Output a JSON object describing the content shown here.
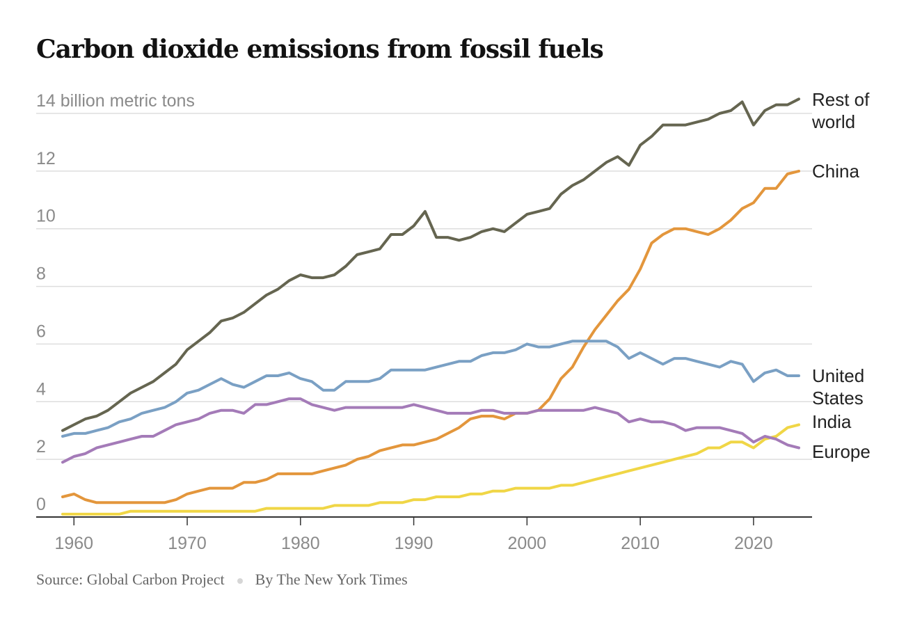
{
  "footer": {
    "source": "Source: Global Carbon Project",
    "byline": "By The New York Times"
  },
  "chart_data": {
    "type": "line",
    "title": "Carbon dioxide emissions from fossil fuels",
    "ylabel": "14 billion metric tons",
    "ylim": [
      0,
      14
    ],
    "y_ticks": [
      0,
      2,
      4,
      6,
      8,
      10,
      12,
      14
    ],
    "y_tick_labels": [
      "0",
      "2",
      "4",
      "6",
      "8",
      "10",
      "12",
      ""
    ],
    "xlim": [
      1959,
      2024
    ],
    "x_ticks": [
      1960,
      1970,
      1980,
      1990,
      2000,
      2010,
      2020
    ],
    "grid": true,
    "legend": "direct labels at right end",
    "x": [
      1959,
      1960,
      1961,
      1962,
      1963,
      1964,
      1965,
      1966,
      1967,
      1968,
      1969,
      1970,
      1971,
      1972,
      1973,
      1974,
      1975,
      1976,
      1977,
      1978,
      1979,
      1980,
      1981,
      1982,
      1983,
      1984,
      1985,
      1986,
      1987,
      1988,
      1989,
      1990,
      1991,
      1992,
      1993,
      1994,
      1995,
      1996,
      1997,
      1998,
      1999,
      2000,
      2001,
      2002,
      2003,
      2004,
      2005,
      2006,
      2007,
      2008,
      2009,
      2010,
      2011,
      2012,
      2013,
      2014,
      2015,
      2016,
      2017,
      2018,
      2019,
      2020,
      2021,
      2022,
      2023,
      2024
    ],
    "series": [
      {
        "name": "Rest of world",
        "label_lines": [
          "Rest of",
          "world"
        ],
        "color": "#656550",
        "values": [
          3.0,
          3.2,
          3.4,
          3.5,
          3.7,
          4.0,
          4.3,
          4.5,
          4.7,
          5.0,
          5.3,
          5.8,
          6.1,
          6.4,
          6.8,
          6.9,
          7.1,
          7.4,
          7.7,
          7.9,
          8.2,
          8.4,
          8.3,
          8.3,
          8.4,
          8.7,
          9.1,
          9.2,
          9.3,
          9.8,
          9.8,
          10.1,
          10.6,
          9.7,
          9.7,
          9.6,
          9.7,
          9.9,
          10.0,
          9.9,
          10.2,
          10.5,
          10.6,
          10.7,
          11.2,
          11.5,
          11.7,
          12.0,
          12.3,
          12.5,
          12.2,
          12.9,
          13.2,
          13.6,
          13.6,
          13.6,
          13.7,
          13.8,
          14.0,
          14.1,
          14.4,
          13.6,
          14.1,
          14.3,
          14.3,
          14.5
        ]
      },
      {
        "name": "China",
        "label_lines": [
          "China"
        ],
        "color": "#e3963c",
        "values": [
          0.7,
          0.8,
          0.6,
          0.5,
          0.5,
          0.5,
          0.5,
          0.5,
          0.5,
          0.5,
          0.6,
          0.8,
          0.9,
          1.0,
          1.0,
          1.0,
          1.2,
          1.2,
          1.3,
          1.5,
          1.5,
          1.5,
          1.5,
          1.6,
          1.7,
          1.8,
          2.0,
          2.1,
          2.3,
          2.4,
          2.5,
          2.5,
          2.6,
          2.7,
          2.9,
          3.1,
          3.4,
          3.5,
          3.5,
          3.4,
          3.6,
          3.6,
          3.7,
          4.1,
          4.8,
          5.2,
          5.9,
          6.5,
          7.0,
          7.5,
          7.9,
          8.6,
          9.5,
          9.8,
          10.0,
          10.0,
          9.9,
          9.8,
          10.0,
          10.3,
          10.7,
          10.9,
          11.4,
          11.4,
          11.9,
          12.0
        ]
      },
      {
        "name": "United States",
        "label_lines": [
          "United",
          "States"
        ],
        "color": "#7aa0c4",
        "values": [
          2.8,
          2.9,
          2.9,
          3.0,
          3.1,
          3.3,
          3.4,
          3.6,
          3.7,
          3.8,
          4.0,
          4.3,
          4.4,
          4.6,
          4.8,
          4.6,
          4.5,
          4.7,
          4.9,
          4.9,
          5.0,
          4.8,
          4.7,
          4.4,
          4.4,
          4.7,
          4.7,
          4.7,
          4.8,
          5.1,
          5.1,
          5.1,
          5.1,
          5.2,
          5.3,
          5.4,
          5.4,
          5.6,
          5.7,
          5.7,
          5.8,
          6.0,
          5.9,
          5.9,
          6.0,
          6.1,
          6.1,
          6.1,
          6.1,
          5.9,
          5.5,
          5.7,
          5.5,
          5.3,
          5.5,
          5.5,
          5.4,
          5.3,
          5.2,
          5.4,
          5.3,
          4.7,
          5.0,
          5.1,
          4.9,
          4.9
        ]
      },
      {
        "name": "India",
        "label_lines": [
          "India"
        ],
        "color": "#f0d646",
        "values": [
          0.1,
          0.1,
          0.1,
          0.1,
          0.1,
          0.1,
          0.2,
          0.2,
          0.2,
          0.2,
          0.2,
          0.2,
          0.2,
          0.2,
          0.2,
          0.2,
          0.2,
          0.2,
          0.3,
          0.3,
          0.3,
          0.3,
          0.3,
          0.3,
          0.4,
          0.4,
          0.4,
          0.4,
          0.5,
          0.5,
          0.5,
          0.6,
          0.6,
          0.7,
          0.7,
          0.7,
          0.8,
          0.8,
          0.9,
          0.9,
          1.0,
          1.0,
          1.0,
          1.0,
          1.1,
          1.1,
          1.2,
          1.3,
          1.4,
          1.5,
          1.6,
          1.7,
          1.8,
          1.9,
          2.0,
          2.1,
          2.2,
          2.4,
          2.4,
          2.6,
          2.6,
          2.4,
          2.7,
          2.8,
          3.1,
          3.2
        ]
      },
      {
        "name": "Europe",
        "label_lines": [
          "Europe"
        ],
        "color": "#a47bb8",
        "values": [
          1.9,
          2.1,
          2.2,
          2.4,
          2.5,
          2.6,
          2.7,
          2.8,
          2.8,
          3.0,
          3.2,
          3.3,
          3.4,
          3.6,
          3.7,
          3.7,
          3.6,
          3.9,
          3.9,
          4.0,
          4.1,
          4.1,
          3.9,
          3.8,
          3.7,
          3.8,
          3.8,
          3.8,
          3.8,
          3.8,
          3.8,
          3.9,
          3.8,
          3.7,
          3.6,
          3.6,
          3.6,
          3.7,
          3.7,
          3.6,
          3.6,
          3.6,
          3.7,
          3.7,
          3.7,
          3.7,
          3.7,
          3.8,
          3.7,
          3.6,
          3.3,
          3.4,
          3.3,
          3.3,
          3.2,
          3.0,
          3.1,
          3.1,
          3.1,
          3.0,
          2.9,
          2.6,
          2.8,
          2.7,
          2.5,
          2.4
        ]
      }
    ]
  }
}
